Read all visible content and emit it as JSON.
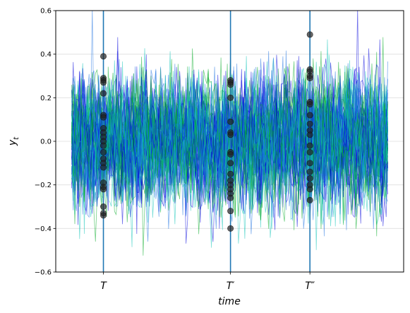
{
  "chart_data": {
    "type": "line",
    "title": "",
    "xlabel": "time",
    "ylabel": "y",
    "ylabel_sub": "t",
    "ylim": [
      -0.6,
      0.6
    ],
    "yticks": [
      -0.6,
      -0.4,
      -0.2,
      0.0,
      0.2,
      0.4,
      0.6
    ],
    "ytick_labels": [
      "−0.6",
      "−0.4",
      "−0.2",
      "0.0",
      "0.2",
      "0.4",
      "0.6"
    ],
    "xlim": [
      -10,
      209
    ],
    "grid": "y",
    "n_series": 60,
    "n_points": 200,
    "series_colors": [
      "#0000dd",
      "#00aa22",
      "#11c4b8",
      "#1a6fe0"
    ],
    "vline_color": "#1f77b4",
    "marker_color": "#222222",
    "vlines": [
      {
        "label": "T",
        "x": 20
      },
      {
        "label": "T′",
        "x": 100
      },
      {
        "label": "T″",
        "x": 150
      }
    ],
    "marked_values": [
      [
        0.39,
        0.29,
        0.28,
        0.27,
        0.22,
        0.12,
        0.11,
        0.06,
        0.04,
        0.02,
        0.0,
        -0.02,
        -0.05,
        -0.08,
        -0.1,
        -0.12,
        -0.19,
        -0.21,
        -0.22,
        -0.3,
        -0.33,
        -0.34
      ],
      [
        0.28,
        0.27,
        0.26,
        0.2,
        0.09,
        0.04,
        0.03,
        -0.05,
        -0.06,
        -0.1,
        -0.15,
        -0.18,
        -0.2,
        -0.22,
        -0.24,
        -0.26,
        -0.32,
        -0.4
      ],
      [
        0.49,
        0.33,
        0.32,
        0.3,
        0.29,
        0.18,
        0.17,
        0.12,
        0.08,
        0.05,
        0.03,
        -0.02,
        -0.05,
        -0.1,
        -0.14,
        -0.17,
        -0.2,
        -0.22,
        -0.27
      ]
    ]
  }
}
